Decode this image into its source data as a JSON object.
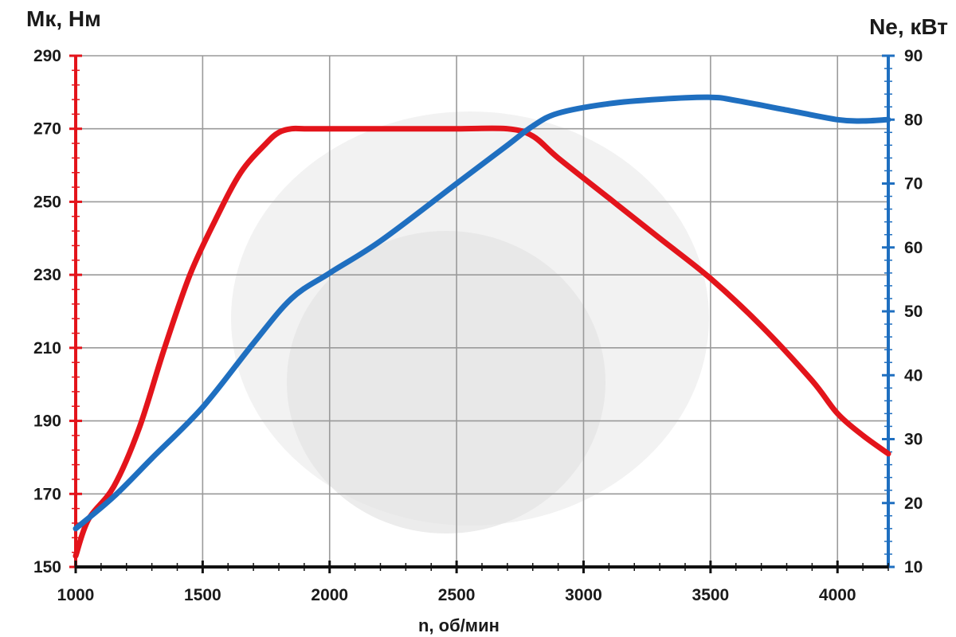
{
  "chart_data": {
    "type": "line",
    "xlabel": "n, об/мин",
    "ylabel_left": "Мк, Нм",
    "ylabel_right": "Ne, кВт",
    "xlim": [
      1000,
      4200
    ],
    "ylim_left": [
      150,
      290
    ],
    "ylim_right": [
      10,
      90
    ],
    "x_ticks": [
      1000,
      1500,
      2000,
      2500,
      3000,
      3500,
      4000
    ],
    "y_left_ticks": [
      150,
      170,
      190,
      210,
      230,
      250,
      270,
      290
    ],
    "y_right_ticks": [
      10,
      20,
      30,
      40,
      50,
      60,
      70,
      80,
      90
    ],
    "grid": true,
    "colors": {
      "torque": "#e3141b",
      "power": "#1f6fc0",
      "grid": "#9a9a9a"
    },
    "series": [
      {
        "axis": "left",
        "x": [
          1000,
          1050,
          1150,
          1250,
          1350,
          1450,
          1550,
          1650,
          1750,
          1800,
          1850,
          1900,
          2000,
          2200,
          2500,
          2700,
          2800,
          2900,
          3100,
          3300,
          3500,
          3700,
          3900,
          4000,
          4100,
          4200
        ],
        "values": [
          153,
          163,
          172,
          188,
          210,
          230,
          245,
          258,
          266,
          269,
          270,
          270,
          270,
          270,
          270,
          270,
          268,
          262,
          251,
          240,
          229,
          216,
          201,
          192,
          186,
          181
        ]
      },
      {
        "axis": "right",
        "x": [
          1000,
          1150,
          1300,
          1500,
          1700,
          1850,
          2000,
          2200,
          2500,
          2700,
          2800,
          2900,
          3100,
          3300,
          3500,
          3600,
          3800,
          4000,
          4100,
          4200
        ],
        "values": [
          16,
          21,
          27,
          35,
          45,
          52,
          56,
          61,
          70,
          76,
          79,
          81,
          82.5,
          83.2,
          83.5,
          83,
          81.5,
          80,
          79.8,
          80
        ]
      }
    ]
  }
}
